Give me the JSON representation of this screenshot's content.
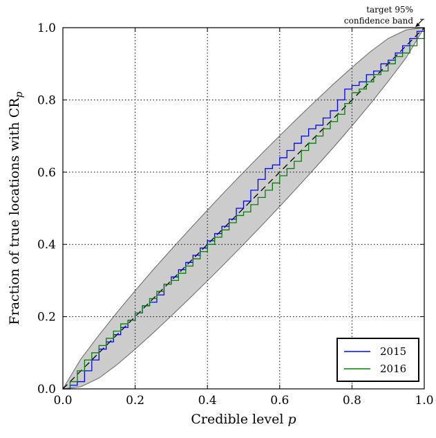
{
  "chart_data": {
    "type": "line",
    "xlabel": "Credible level p",
    "ylabel": "Fraction of true locations with CR_p",
    "xlim": [
      0,
      1
    ],
    "ylim": [
      0,
      1
    ],
    "x_ticks": [
      "0.0",
      "0.2",
      "0.4",
      "0.6",
      "0.8",
      "1.0"
    ],
    "y_ticks": [
      "0.0",
      "0.2",
      "0.4",
      "0.6",
      "0.8",
      "1.0"
    ],
    "grid": true,
    "legend_position": "bottom-right",
    "annotation": {
      "line1": "target 95%",
      "line2": "confidence band"
    },
    "diagonal": {
      "x": [
        0,
        1
      ],
      "y": [
        0,
        1
      ]
    },
    "band": {
      "x": [
        0,
        0.05,
        0.1,
        0.15,
        0.2,
        0.25,
        0.3,
        0.35,
        0.4,
        0.45,
        0.5,
        0.55,
        0.6,
        0.65,
        0.7,
        0.75,
        0.8,
        0.85,
        0.9,
        0.95,
        1.0
      ],
      "upper": [
        0,
        0.083,
        0.149,
        0.212,
        0.272,
        0.33,
        0.386,
        0.441,
        0.495,
        0.548,
        0.6,
        0.651,
        0.701,
        0.75,
        0.798,
        0.845,
        0.89,
        0.933,
        0.97,
        0.994,
        1.0
      ],
      "lower": [
        0,
        0.006,
        0.03,
        0.067,
        0.11,
        0.155,
        0.202,
        0.25,
        0.299,
        0.349,
        0.4,
        0.452,
        0.505,
        0.559,
        0.614,
        0.67,
        0.728,
        0.788,
        0.851,
        0.917,
        1.0
      ]
    },
    "series": [
      {
        "name": "2015",
        "color": "#0000ff",
        "x": [
          0,
          0.02,
          0.04,
          0.06,
          0.08,
          0.1,
          0.12,
          0.14,
          0.16,
          0.18,
          0.2,
          0.22,
          0.24,
          0.26,
          0.28,
          0.3,
          0.32,
          0.34,
          0.36,
          0.38,
          0.4,
          0.42,
          0.44,
          0.46,
          0.48,
          0.5,
          0.52,
          0.54,
          0.56,
          0.58,
          0.6,
          0.62,
          0.64,
          0.66,
          0.68,
          0.7,
          0.72,
          0.74,
          0.76,
          0.78,
          0.8,
          0.82,
          0.84,
          0.86,
          0.88,
          0.9,
          0.92,
          0.94,
          0.96,
          0.98,
          1.0
        ],
        "y": [
          0,
          0.01,
          0.02,
          0.05,
          0.08,
          0.11,
          0.13,
          0.15,
          0.17,
          0.19,
          0.21,
          0.23,
          0.24,
          0.26,
          0.29,
          0.31,
          0.33,
          0.35,
          0.37,
          0.39,
          0.41,
          0.43,
          0.45,
          0.47,
          0.5,
          0.52,
          0.55,
          0.58,
          0.61,
          0.62,
          0.64,
          0.66,
          0.68,
          0.7,
          0.72,
          0.73,
          0.75,
          0.77,
          0.8,
          0.83,
          0.84,
          0.85,
          0.87,
          0.88,
          0.9,
          0.91,
          0.93,
          0.95,
          0.97,
          0.99,
          1.0
        ]
      },
      {
        "name": "2016",
        "color": "#008000",
        "x": [
          0,
          0.02,
          0.04,
          0.06,
          0.08,
          0.1,
          0.12,
          0.14,
          0.16,
          0.18,
          0.2,
          0.22,
          0.24,
          0.26,
          0.28,
          0.3,
          0.32,
          0.34,
          0.36,
          0.38,
          0.4,
          0.42,
          0.44,
          0.46,
          0.48,
          0.5,
          0.52,
          0.54,
          0.56,
          0.58,
          0.6,
          0.62,
          0.64,
          0.66,
          0.68,
          0.7,
          0.72,
          0.74,
          0.76,
          0.78,
          0.8,
          0.82,
          0.84,
          0.86,
          0.88,
          0.9,
          0.92,
          0.94,
          0.96,
          0.98,
          1.0
        ],
        "y": [
          0,
          0.02,
          0.05,
          0.08,
          0.1,
          0.12,
          0.14,
          0.16,
          0.18,
          0.19,
          0.21,
          0.23,
          0.25,
          0.27,
          0.29,
          0.3,
          0.32,
          0.34,
          0.36,
          0.38,
          0.4,
          0.42,
          0.44,
          0.46,
          0.48,
          0.49,
          0.51,
          0.53,
          0.55,
          0.57,
          0.59,
          0.61,
          0.63,
          0.66,
          0.68,
          0.7,
          0.72,
          0.74,
          0.76,
          0.79,
          0.82,
          0.83,
          0.85,
          0.87,
          0.88,
          0.9,
          0.92,
          0.93,
          0.95,
          0.97,
          1.0
        ]
      }
    ]
  }
}
